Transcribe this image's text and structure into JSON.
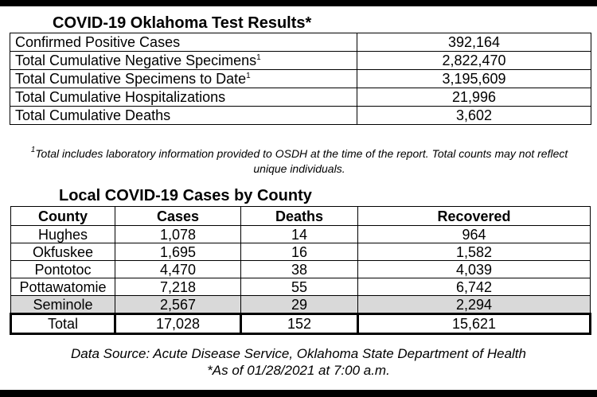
{
  "results": {
    "title": "COVID-19 Oklahoma Test Results*",
    "rows": [
      {
        "label": "Confirmed Positive Cases",
        "sup": "",
        "value": "392,164"
      },
      {
        "label": "Total Cumulative Negative Specimens",
        "sup": "1",
        "value": "2,822,470"
      },
      {
        "label": "Total Cumulative Specimens to Date",
        "sup": "1",
        "value": "3,195,609"
      },
      {
        "label": "Total Cumulative Hospitalizations",
        "sup": "",
        "value": "21,996"
      },
      {
        "label": "Total Cumulative Deaths",
        "sup": "",
        "value": "3,602"
      }
    ],
    "footnote_mark": "1",
    "footnote": "Total includes laboratory information provided to OSDH at the time of the report. Total counts may not reflect unique individuals."
  },
  "county": {
    "title": "Local COVID-19 Cases by County",
    "headers": [
      "County",
      "Cases",
      "Deaths",
      "Recovered"
    ],
    "rows": [
      [
        "Hughes",
        "1,078",
        "14",
        "964"
      ],
      [
        "Okfuskee",
        "1,695",
        "16",
        "1,582"
      ],
      [
        "Pontotoc",
        "4,470",
        "38",
        "4,039"
      ],
      [
        "Pottawatomie",
        "7,218",
        "55",
        "6,742"
      ],
      [
        "Seminole",
        "2,567",
        "29",
        "2,294"
      ]
    ],
    "total": [
      "Total",
      "17,028",
      "152",
      "15,621"
    ]
  },
  "source": {
    "line1": "Data Source: Acute Disease Service, Oklahoma State Department of Health",
    "line2": "*As of 01/28/2021 at 7:00 a.m."
  },
  "colors": {
    "highlight_row": "#d9d9d9",
    "background": "#000000",
    "sheet": "#ffffff"
  }
}
